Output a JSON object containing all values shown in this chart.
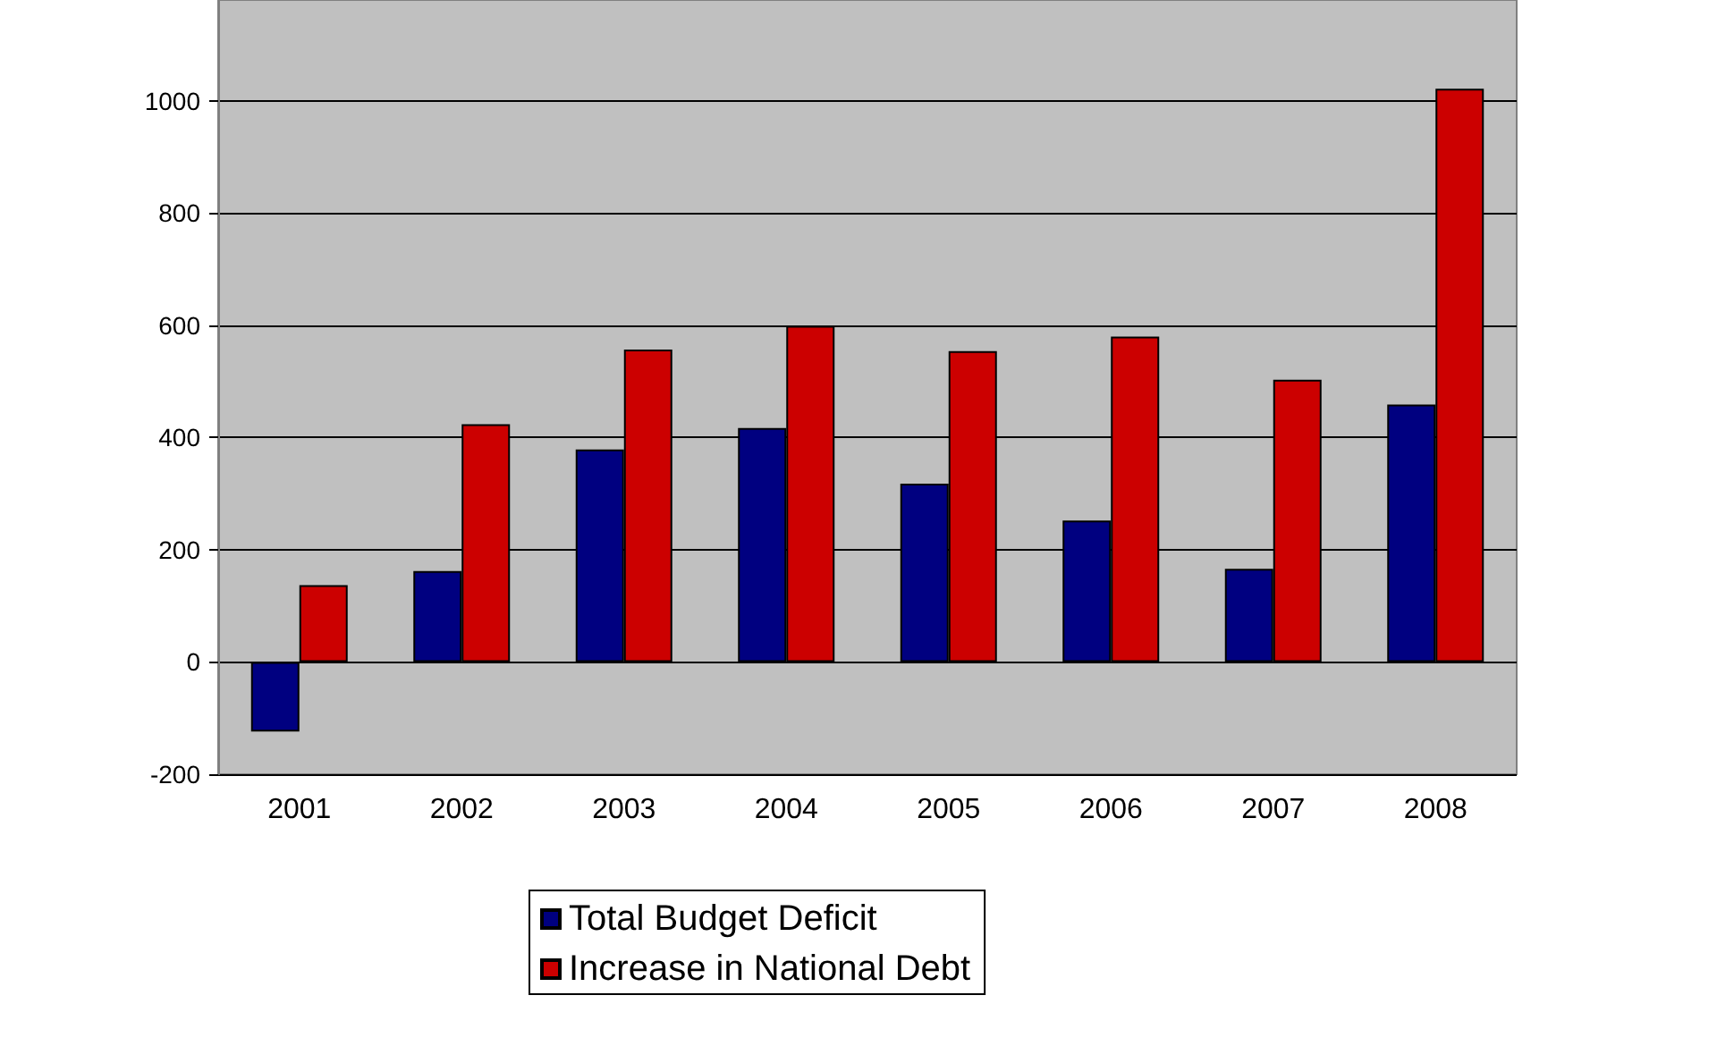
{
  "chart_data": {
    "type": "bar",
    "categories": [
      "2001",
      "2002",
      "2003",
      "2004",
      "2005",
      "2006",
      "2007",
      "2008"
    ],
    "series": [
      {
        "name": "Total Budget Deficit",
        "color": "#000080",
        "values": [
          -124,
          162,
          379,
          417,
          318,
          252,
          166,
          459
        ]
      },
      {
        "name": "Increase in National Debt",
        "color": "#cc0000",
        "values": [
          137,
          424,
          557,
          599,
          554,
          580,
          503,
          1022
        ]
      }
    ],
    "ylim": [
      -200,
      1180
    ],
    "yticks": [
      -200,
      0,
      200,
      400,
      600,
      800,
      1000
    ],
    "grid": "y",
    "legend": "bottom"
  }
}
